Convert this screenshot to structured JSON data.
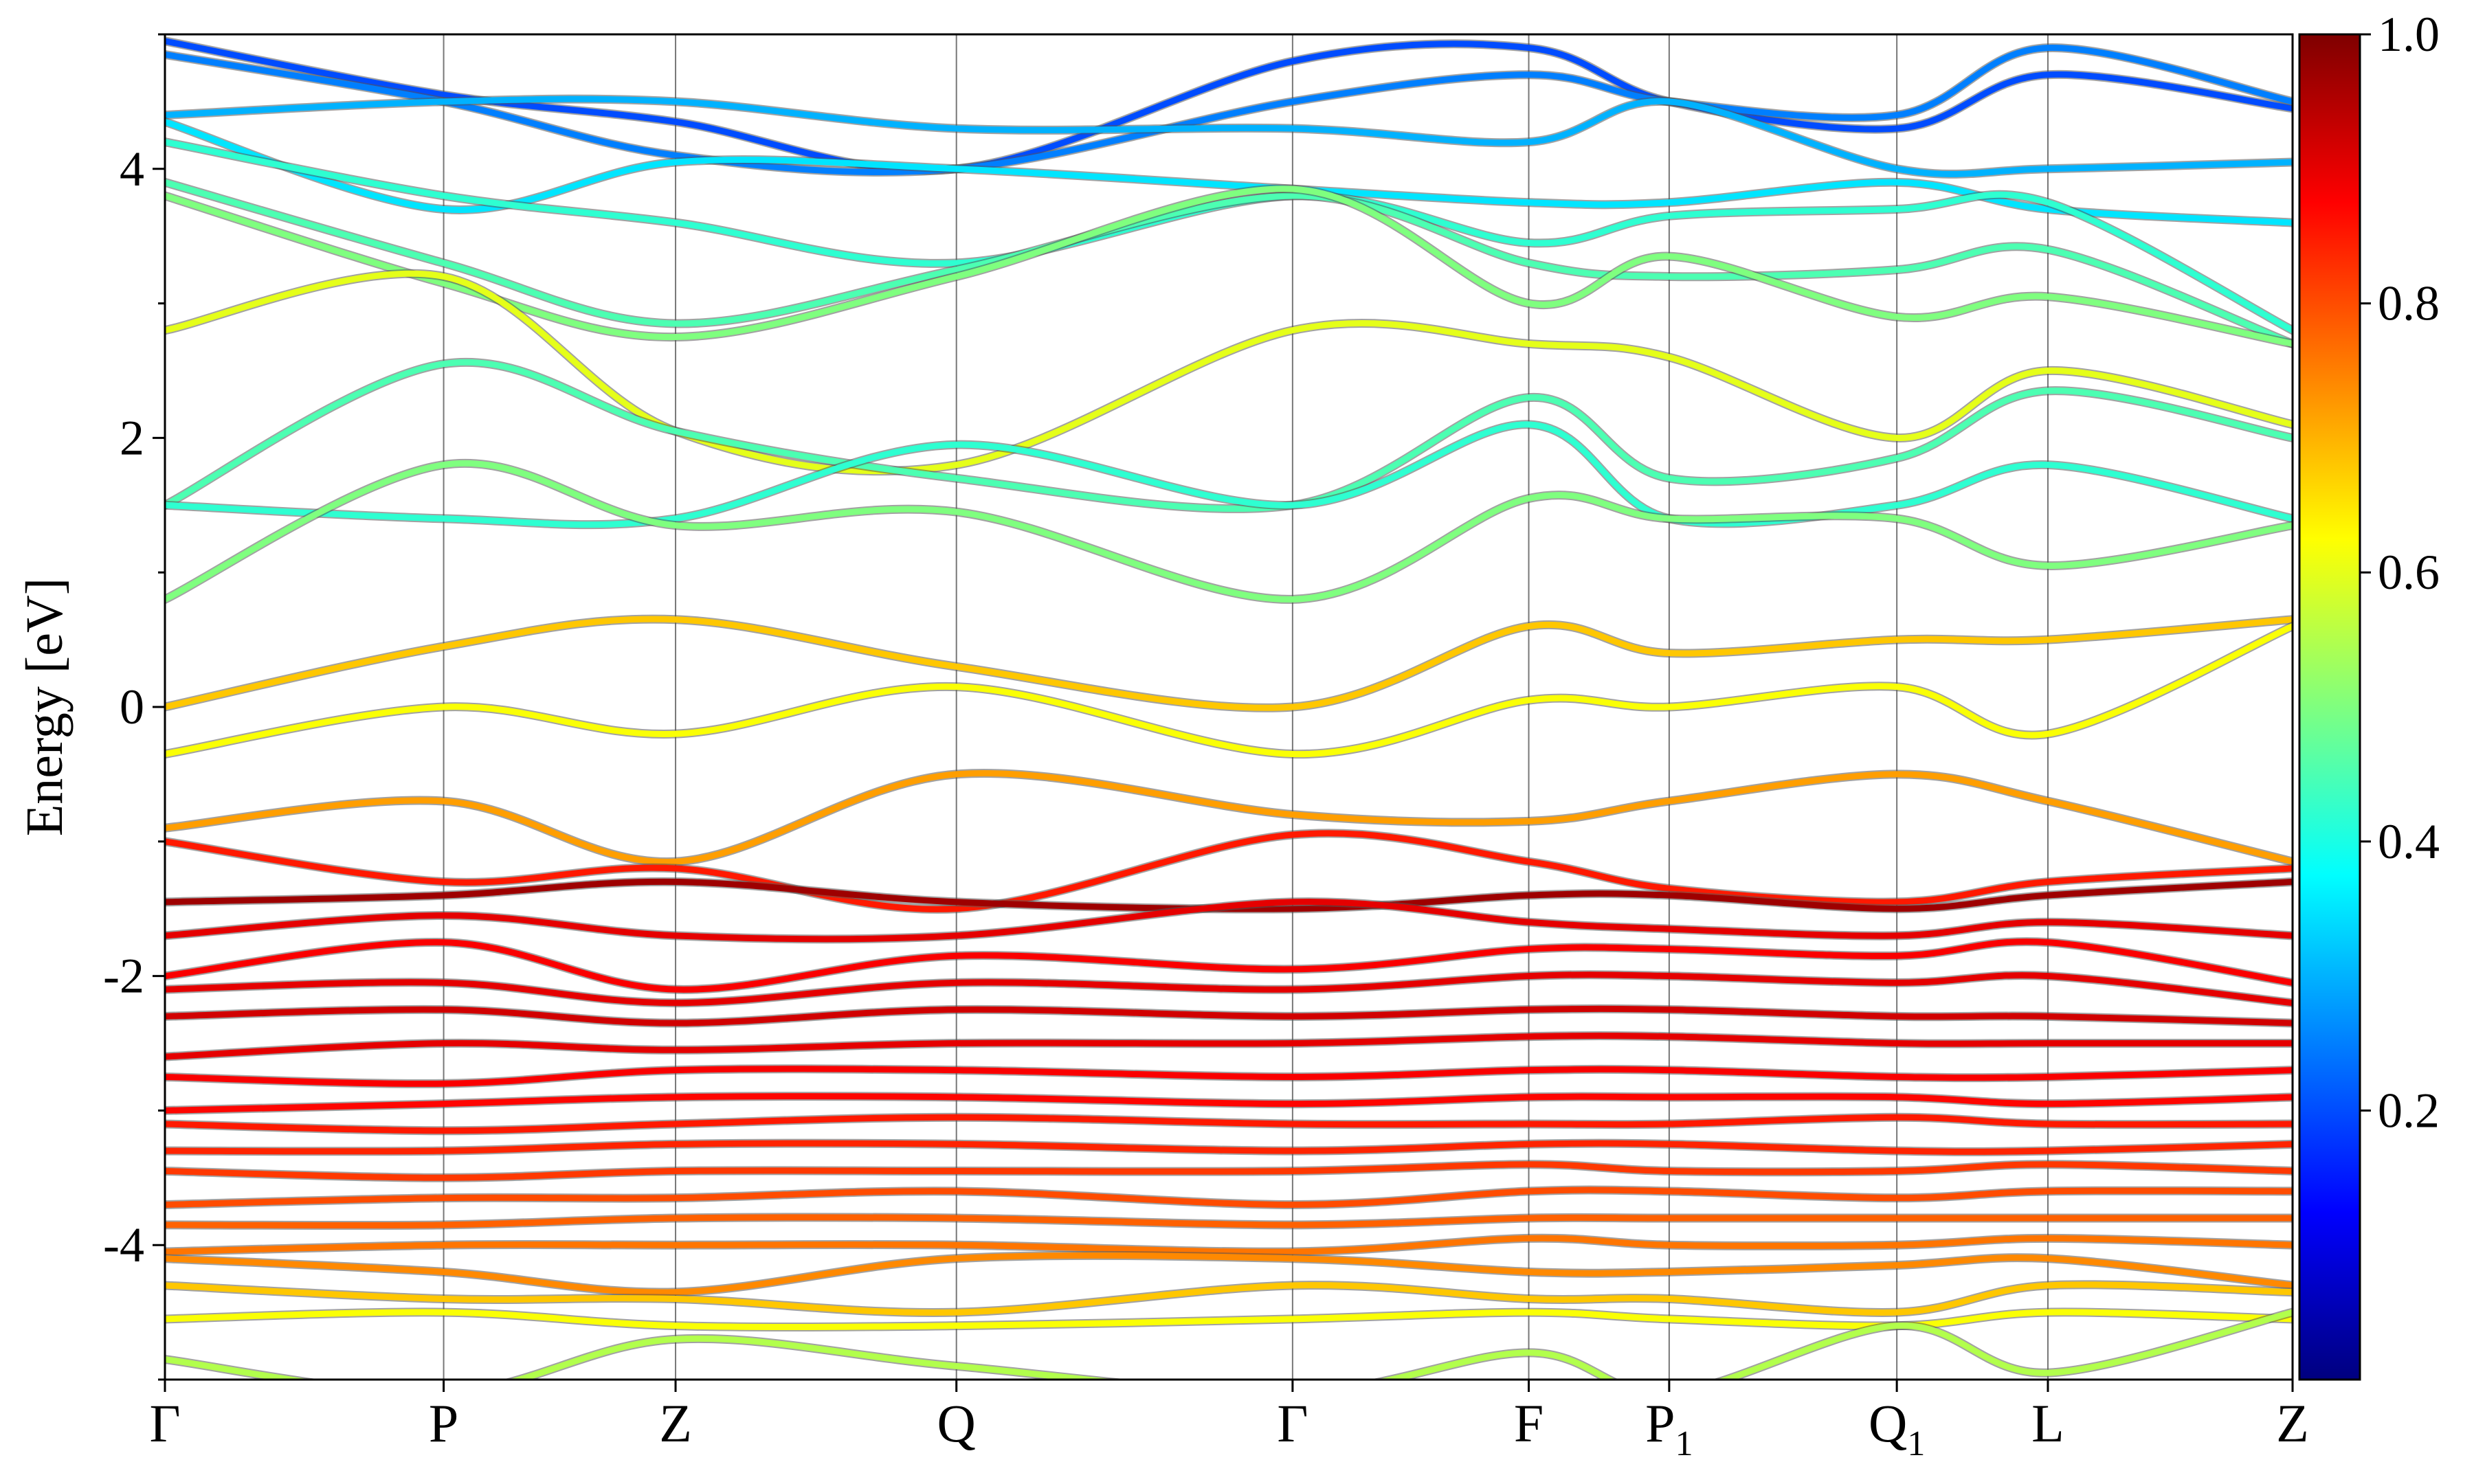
{
  "chart_data": {
    "type": "line",
    "title": "",
    "xlabel": "",
    "ylabel": "Energy [eV]",
    "ylim": [
      -5,
      5
    ],
    "y_ticks": [
      -4,
      -2,
      0,
      2,
      4
    ],
    "y_tick_labels": [
      "-4",
      "-2",
      "0",
      "2",
      "4"
    ],
    "high_symmetry_points": [
      "Γ",
      "P",
      "Z",
      "Q",
      "Γ",
      "F",
      "P",
      "Q",
      "L",
      "Z"
    ],
    "high_symmetry_subscripts": [
      "",
      "",
      "",
      "",
      "",
      "",
      "1",
      "1",
      "",
      ""
    ],
    "k_path_positions": [
      0,
      0.131,
      0.24,
      0.372,
      0.53,
      0.641,
      0.707,
      0.814,
      0.885,
      1.0
    ],
    "grid_vertical_lines": true,
    "legend": "none",
    "colorbar": {
      "colormap": "jet",
      "range": [
        0,
        1
      ],
      "ticks": [
        0.2,
        0.4,
        0.6,
        0.8,
        1.0
      ],
      "tick_labels": [
        "0.2",
        "0.4",
        "0.6",
        "0.8",
        "1.0"
      ]
    },
    "colormap_stops": [
      "#00007f",
      "#0000ff",
      "#007fff",
      "#00ffff",
      "#7fff7f",
      "#ffff00",
      "#ff7f00",
      "#ff0000",
      "#7f0000"
    ],
    "band_summary": {
      "conduction_band_energy_range": [
        0.5,
        5
      ],
      "conduction_weight_approx": 0.45,
      "gap_region_bands_energy_range": [
        -1,
        0.7
      ],
      "valence_band_energy_range": [
        -5,
        -1
      ],
      "valence_weight_approx": 0.88
    },
    "series": [
      {
        "knots": [
          4.95,
          4.55,
          4.35,
          4.0,
          4.8,
          4.9,
          4.5,
          4.3,
          4.7,
          4.45
        ],
        "weight": 0.2
      },
      {
        "knots": [
          4.85,
          4.5,
          4.1,
          4.0,
          4.5,
          4.7,
          4.5,
          4.4,
          4.9,
          4.5
        ],
        "weight": 0.25
      },
      {
        "knots": [
          4.4,
          4.5,
          4.5,
          4.3,
          4.3,
          4.2,
          4.5,
          4.0,
          4.0,
          4.05
        ],
        "weight": 0.3
      },
      {
        "knots": [
          4.35,
          3.7,
          4.05,
          4.0,
          3.85,
          3.75,
          3.75,
          3.9,
          3.7,
          3.6
        ],
        "weight": 0.35
      },
      {
        "knots": [
          4.2,
          3.8,
          3.6,
          3.3,
          3.8,
          3.45,
          3.65,
          3.7,
          3.75,
          2.8
        ],
        "weight": 0.42
      },
      {
        "knots": [
          3.9,
          3.3,
          2.85,
          3.25,
          3.8,
          3.3,
          3.2,
          3.25,
          3.4,
          2.7
        ],
        "weight": 0.45
      },
      {
        "knots": [
          3.8,
          3.15,
          2.75,
          3.2,
          3.85,
          3.0,
          3.35,
          2.9,
          3.05,
          2.7
        ],
        "weight": 0.5
      },
      {
        "knots": [
          2.8,
          3.2,
          2.05,
          1.8,
          2.8,
          2.7,
          2.6,
          2.0,
          2.5,
          2.1
        ],
        "weight": 0.6
      },
      {
        "knots": [
          1.5,
          2.55,
          2.05,
          1.7,
          1.5,
          2.3,
          1.7,
          1.85,
          2.35,
          2.0
        ],
        "weight": 0.45
      },
      {
        "knots": [
          1.5,
          1.4,
          1.4,
          1.95,
          1.5,
          2.1,
          1.4,
          1.5,
          1.8,
          1.4
        ],
        "weight": 0.42
      },
      {
        "knots": [
          0.8,
          1.8,
          1.35,
          1.45,
          0.8,
          1.55,
          1.4,
          1.4,
          1.05,
          1.35
        ],
        "weight": 0.5
      },
      {
        "knots": [
          0.0,
          0.45,
          0.65,
          0.3,
          0.0,
          0.6,
          0.4,
          0.5,
          0.5,
          0.65
        ],
        "weight": 0.68
      },
      {
        "knots": [
          -0.35,
          0.0,
          -0.2,
          0.15,
          -0.35,
          0.05,
          0.0,
          0.15,
          -0.2,
          0.6
        ],
        "weight": 0.62
      },
      {
        "knots": [
          -0.9,
          -0.7,
          -1.15,
          -0.5,
          -0.8,
          -0.85,
          -0.7,
          -0.5,
          -0.7,
          -1.15
        ],
        "weight": 0.72
      },
      {
        "knots": [
          -1.0,
          -1.3,
          -1.2,
          -1.5,
          -0.95,
          -1.15,
          -1.35,
          -1.45,
          -1.3,
          -1.2
        ],
        "weight": 0.85
      },
      {
        "knots": [
          -1.45,
          -1.4,
          -1.3,
          -1.45,
          -1.5,
          -1.4,
          -1.4,
          -1.5,
          -1.4,
          -1.3
        ],
        "weight": 0.97
      },
      {
        "knots": [
          -1.7,
          -1.55,
          -1.7,
          -1.7,
          -1.45,
          -1.6,
          -1.65,
          -1.7,
          -1.6,
          -1.7
        ],
        "weight": 0.9
      },
      {
        "knots": [
          -2.0,
          -1.75,
          -2.1,
          -1.85,
          -1.95,
          -1.8,
          -1.8,
          -1.85,
          -1.75,
          -2.05
        ],
        "weight": 0.88
      },
      {
        "knots": [
          -2.1,
          -2.05,
          -2.2,
          -2.05,
          -2.1,
          -2.0,
          -2.0,
          -2.05,
          -2.0,
          -2.2
        ],
        "weight": 0.9
      },
      {
        "knots": [
          -2.3,
          -2.25,
          -2.35,
          -2.25,
          -2.3,
          -2.25,
          -2.25,
          -2.3,
          -2.3,
          -2.35
        ],
        "weight": 0.92
      },
      {
        "knots": [
          -2.6,
          -2.5,
          -2.55,
          -2.5,
          -2.5,
          -2.45,
          -2.45,
          -2.5,
          -2.5,
          -2.5
        ],
        "weight": 0.9
      },
      {
        "knots": [
          -2.75,
          -2.8,
          -2.7,
          -2.7,
          -2.75,
          -2.7,
          -2.7,
          -2.75,
          -2.75,
          -2.7
        ],
        "weight": 0.88
      },
      {
        "knots": [
          -3.0,
          -2.95,
          -2.9,
          -2.9,
          -2.95,
          -2.9,
          -2.9,
          -2.9,
          -2.95,
          -2.9
        ],
        "weight": 0.87
      },
      {
        "knots": [
          -3.1,
          -3.15,
          -3.1,
          -3.05,
          -3.1,
          -3.1,
          -3.1,
          -3.05,
          -3.1,
          -3.1
        ],
        "weight": 0.85
      },
      {
        "knots": [
          -3.3,
          -3.3,
          -3.25,
          -3.25,
          -3.3,
          -3.25,
          -3.25,
          -3.3,
          -3.3,
          -3.25
        ],
        "weight": 0.84
      },
      {
        "knots": [
          -3.45,
          -3.5,
          -3.45,
          -3.45,
          -3.45,
          -3.4,
          -3.45,
          -3.45,
          -3.4,
          -3.45
        ],
        "weight": 0.82
      },
      {
        "knots": [
          -3.7,
          -3.65,
          -3.65,
          -3.6,
          -3.7,
          -3.6,
          -3.6,
          -3.65,
          -3.6,
          -3.6
        ],
        "weight": 0.8
      },
      {
        "knots": [
          -3.85,
          -3.85,
          -3.8,
          -3.8,
          -3.85,
          -3.8,
          -3.8,
          -3.8,
          -3.8,
          -3.8
        ],
        "weight": 0.78
      },
      {
        "knots": [
          -4.05,
          -4.0,
          -4.0,
          -4.0,
          -4.05,
          -3.95,
          -4.0,
          -4.0,
          -3.95,
          -4.0
        ],
        "weight": 0.76
      },
      {
        "knots": [
          -4.1,
          -4.2,
          -4.35,
          -4.1,
          -4.1,
          -4.2,
          -4.2,
          -4.15,
          -4.1,
          -4.3
        ],
        "weight": 0.74
      },
      {
        "knots": [
          -4.3,
          -4.4,
          -4.4,
          -4.5,
          -4.3,
          -4.4,
          -4.4,
          -4.5,
          -4.3,
          -4.35
        ],
        "weight": 0.68
      },
      {
        "knots": [
          -4.55,
          -4.5,
          -4.6,
          -4.6,
          -4.55,
          -4.5,
          -4.55,
          -4.6,
          -4.5,
          -4.55
        ],
        "weight": 0.62
      },
      {
        "knots": [
          -4.85,
          -5.1,
          -4.7,
          -4.9,
          -5.1,
          -4.8,
          -5.1,
          -4.6,
          -4.95,
          -4.5
        ],
        "weight": 0.55
      }
    ]
  }
}
